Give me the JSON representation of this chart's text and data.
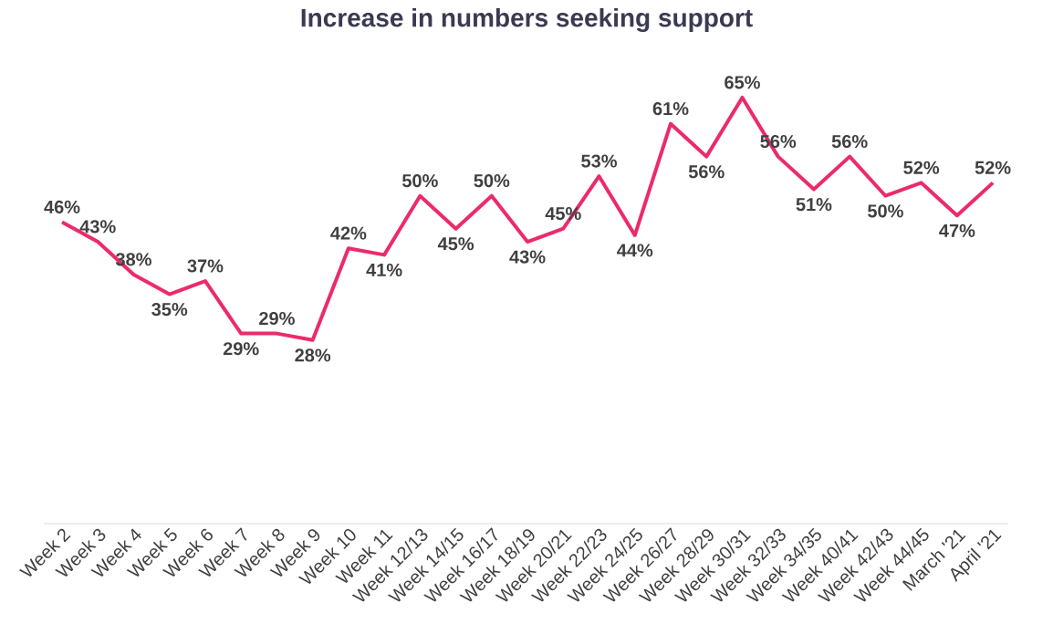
{
  "chart_data": {
    "type": "line",
    "title": "Increase in numbers seeking support",
    "categories": [
      "Week 2",
      "Week 3",
      "Week 4",
      "Week 5",
      "Week 6",
      "Week 7",
      "Week 8",
      "Week 9",
      "Week 10",
      "Week 11",
      "Week 12/13",
      "Week 14/15",
      "Week 16/17",
      "Week 18/19",
      "Week 20/21",
      "Week 22/23",
      "Week 24/25",
      "Week 26/27",
      "Week 28/29",
      "Week 30/31",
      "Week 32/33",
      "Week 34/35",
      "Week 40/41",
      "Week 42/43",
      "Week 44/45",
      "March '21",
      "April '21"
    ],
    "values": [
      46,
      43,
      38,
      35,
      37,
      29,
      29,
      28,
      42,
      41,
      50,
      45,
      50,
      43,
      45,
      53,
      44,
      61,
      56,
      65,
      56,
      51,
      56,
      50,
      52,
      47,
      52
    ],
    "value_labels": [
      "46%",
      "43%",
      "38%",
      "35%",
      "37%",
      "29%",
      "29%",
      "28%",
      "42%",
      "41%",
      "50%",
      "45%",
      "50%",
      "43%",
      "45%",
      "53%",
      "44%",
      "61%",
      "56%",
      "65%",
      "56%",
      "51%",
      "56%",
      "50%",
      "52%",
      "47%",
      "52%"
    ],
    "color": "#ec2a6c"
  }
}
